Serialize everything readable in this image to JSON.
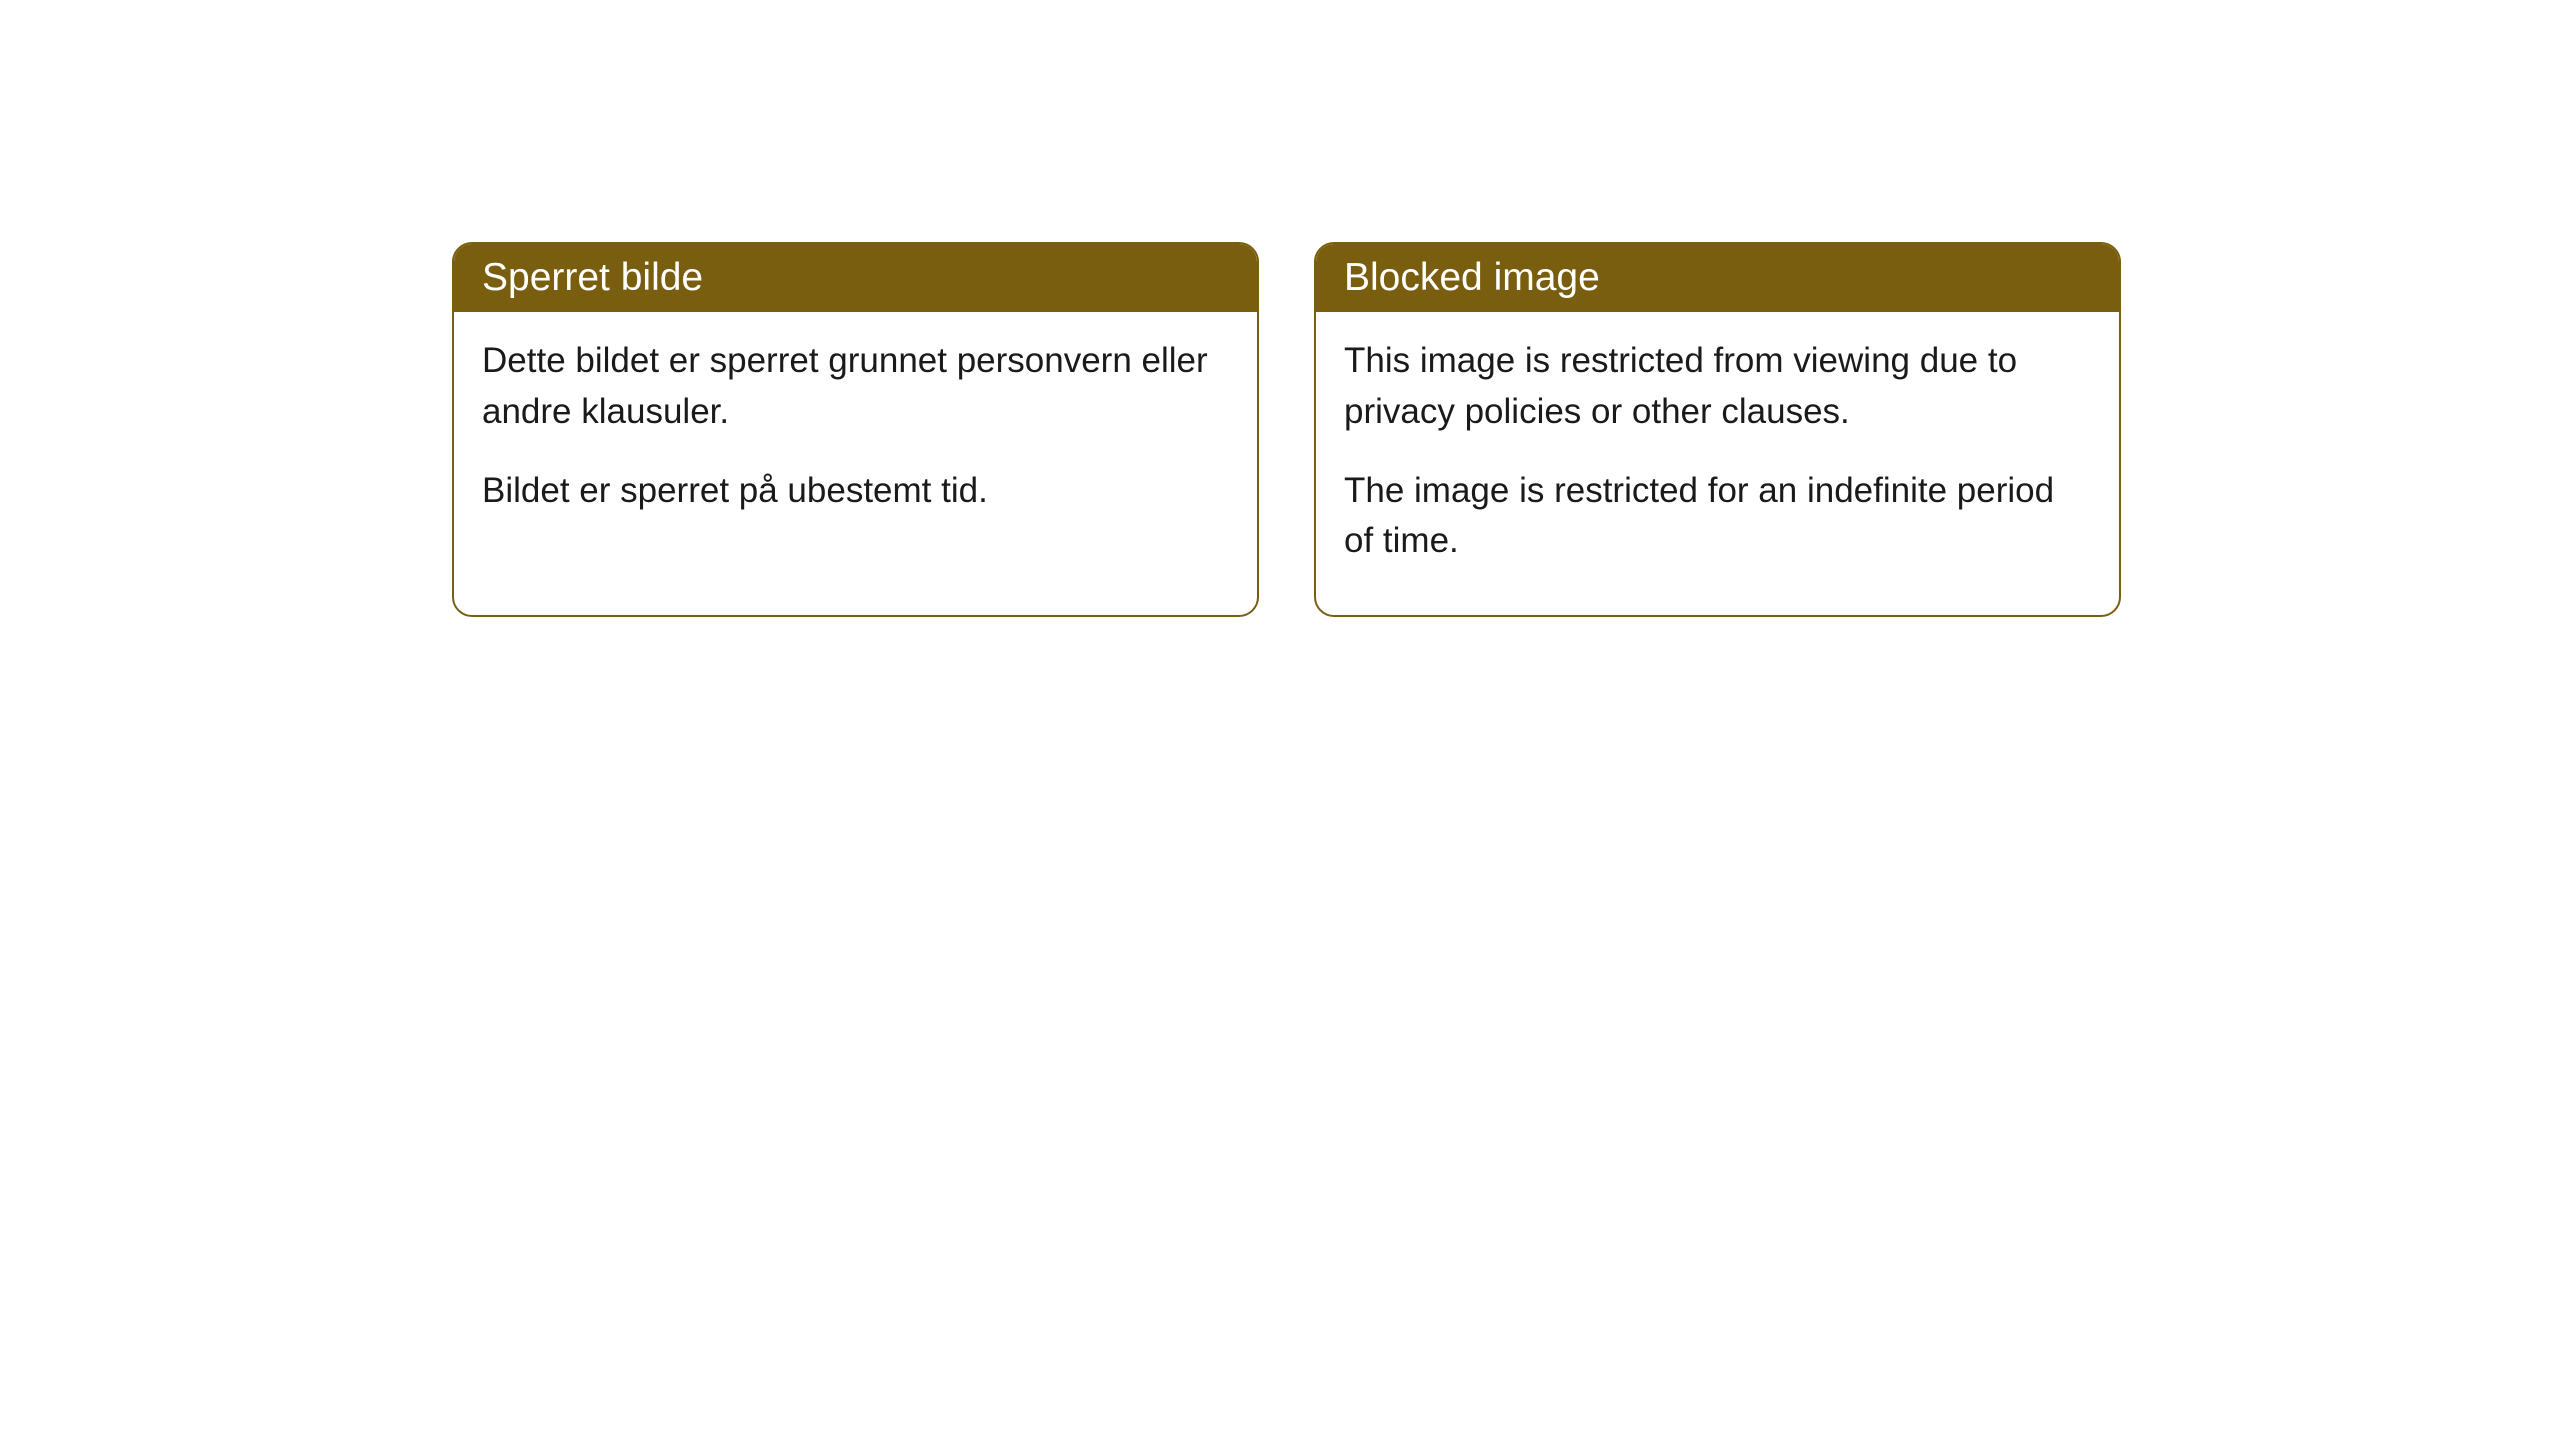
{
  "cards": [
    {
      "title": "Sperret bilde",
      "paragraph1": "Dette bildet er sperret grunnet personvern eller andre klausuler.",
      "paragraph2": "Bildet er sperret på ubestemt tid."
    },
    {
      "title": "Blocked image",
      "paragraph1": "This image is restricted from viewing due to privacy policies or other clauses.",
      "paragraph2": "The image is restricted for an indefinite period of time."
    }
  ],
  "styling": {
    "header_background_color": "#7a5e10",
    "header_text_color": "#ffffff",
    "border_color": "#7a5e10",
    "body_background_color": "#ffffff",
    "body_text_color": "#1a1a1a",
    "border_radius": 20,
    "header_fontsize": 39,
    "body_fontsize": 35
  }
}
